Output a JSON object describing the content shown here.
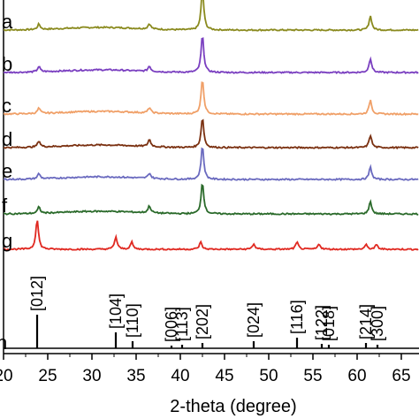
{
  "chart_data": {
    "type": "line",
    "title": "",
    "xlabel": "2-theta (degree)",
    "ylabel": "",
    "xlim": [
      20,
      67
    ],
    "grid": false,
    "x_ticks": [
      20,
      25,
      30,
      35,
      40,
      45,
      50,
      55,
      60,
      65
    ],
    "series": [
      {
        "name": "a",
        "color": "#8a8a1e",
        "peaks": [
          [
            24.0,
            6
          ],
          [
            36.5,
            6
          ],
          [
            42.5,
            46
          ],
          [
            61.5,
            16
          ]
        ]
      },
      {
        "name": "b",
        "color": "#7a3fc0",
        "peaks": [
          [
            24.0,
            6
          ],
          [
            36.5,
            6
          ],
          [
            42.5,
            42
          ],
          [
            61.5,
            16
          ]
        ]
      },
      {
        "name": "c",
        "color": "#f0a068",
        "peaks": [
          [
            24.0,
            6
          ],
          [
            36.5,
            6
          ],
          [
            42.5,
            40
          ],
          [
            61.5,
            16
          ]
        ]
      },
      {
        "name": "d",
        "color": "#7a3010",
        "peaks": [
          [
            24.0,
            7
          ],
          [
            36.5,
            8
          ],
          [
            42.5,
            34
          ],
          [
            61.5,
            14
          ]
        ]
      },
      {
        "name": "e",
        "color": "#6a6abf",
        "peaks": [
          [
            24.0,
            6
          ],
          [
            36.5,
            6
          ],
          [
            42.5,
            38
          ],
          [
            61.5,
            14
          ]
        ]
      },
      {
        "name": "f",
        "color": "#2a6a2a",
        "peaks": [
          [
            24.0,
            7
          ],
          [
            36.5,
            8
          ],
          [
            42.5,
            36
          ],
          [
            61.5,
            14
          ]
        ]
      },
      {
        "name": "g",
        "color": "#e02820",
        "peaks": [
          [
            23.8,
            34
          ],
          [
            32.7,
            14
          ],
          [
            34.5,
            8
          ],
          [
            42.3,
            8
          ],
          [
            48.3,
            6
          ],
          [
            53.2,
            8
          ],
          [
            55.7,
            6
          ],
          [
            61.0,
            5
          ],
          [
            62.2,
            5
          ]
        ]
      }
    ],
    "reference": {
      "name": "h",
      "color": "#000000",
      "peaks": [
        {
          "x": 23.8,
          "y": 38,
          "hkl": "[012]"
        },
        {
          "x": 32.7,
          "y": 18,
          "hkl": "[104]"
        },
        {
          "x": 34.6,
          "y": 8,
          "hkl": "[110]"
        },
        {
          "x": 39.0,
          "y": 3,
          "hkl": "[006]"
        },
        {
          "x": 40.2,
          "y": 4,
          "hkl": "[113]"
        },
        {
          "x": 42.5,
          "y": 6,
          "hkl": "[202]"
        },
        {
          "x": 48.3,
          "y": 8,
          "hkl": "[024]"
        },
        {
          "x": 53.2,
          "y": 12,
          "hkl": "[116]"
        },
        {
          "x": 56.0,
          "y": 5,
          "hkl": "[122]"
        },
        {
          "x": 56.8,
          "y": 4,
          "hkl": "[018]"
        },
        {
          "x": 61.0,
          "y": 6,
          "hkl": "[214]"
        },
        {
          "x": 62.3,
          "y": 4,
          "hkl": "[300]"
        }
      ]
    }
  }
}
